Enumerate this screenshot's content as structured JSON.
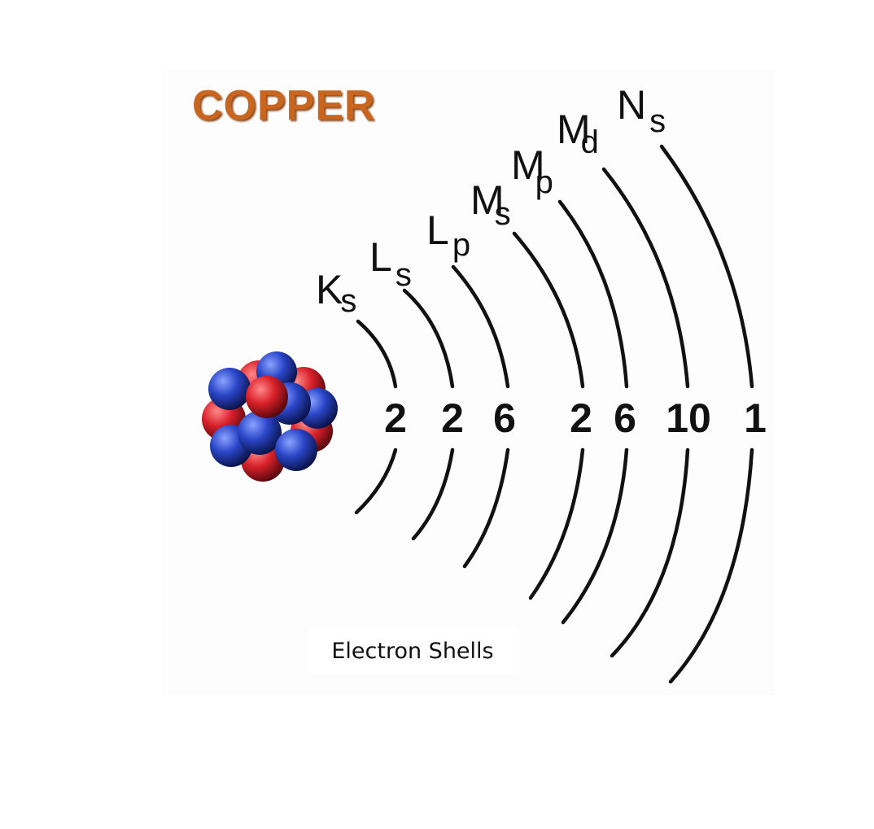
{
  "title": "COPPER",
  "caption": "Electron Shells",
  "colors": {
    "title": "#c8651e",
    "proton": "#d9212b",
    "neutron": "#2a46c8"
  },
  "shells": [
    {
      "letter": "K",
      "sub": "s",
      "count": "2"
    },
    {
      "letter": "L",
      "sub": "s",
      "count": "2"
    },
    {
      "letter": "L",
      "sub": "p",
      "count": "6"
    },
    {
      "letter": "M",
      "sub": "s",
      "count": "2"
    },
    {
      "letter": "M",
      "sub": "p",
      "count": "6"
    },
    {
      "letter": "M",
      "sub": "d",
      "count": "10"
    },
    {
      "letter": "N",
      "sub": "s",
      "count": "1"
    }
  ]
}
